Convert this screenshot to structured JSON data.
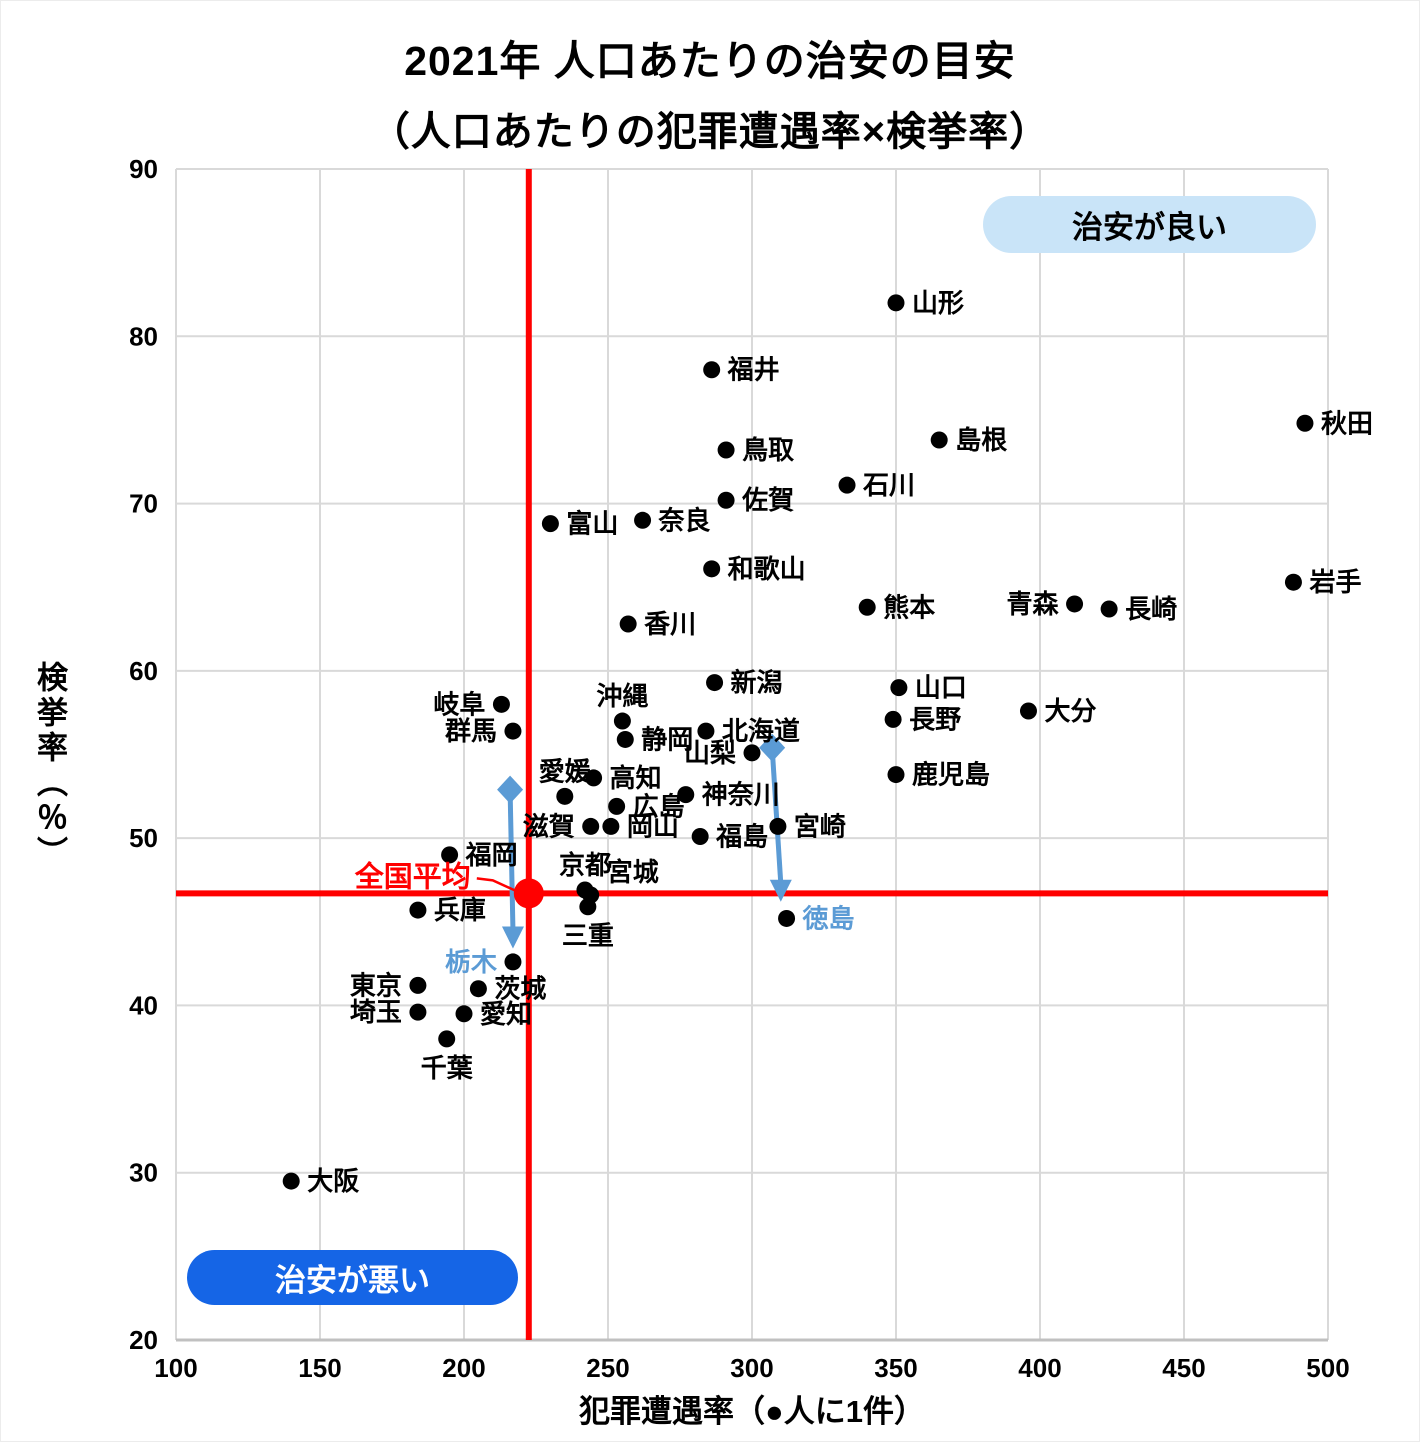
{
  "chart_data": {
    "type": "scatter",
    "title": "2021年 人口あたりの治安の目安",
    "subtitle": "（人口あたりの犯罪遭遇率×検挙率）",
    "xlabel": "犯罪遭遇率（●人に1件）",
    "ylabel": "検挙率（％）",
    "xlim": [
      100,
      500
    ],
    "ylim": [
      20,
      90
    ],
    "x_ticks": [
      100,
      150,
      200,
      250,
      300,
      350,
      400,
      450,
      500
    ],
    "y_ticks": [
      20,
      30,
      40,
      50,
      60,
      70,
      80,
      90
    ],
    "grid": true,
    "point_color": "#000000",
    "accent_red": "#ff0000",
    "accent_blue": "#5b9bd5",
    "grid_color": "#d9d9d9",
    "points": [
      {
        "name": "山形",
        "x": 350,
        "y": 82.0,
        "label_pos": "right"
      },
      {
        "name": "福井",
        "x": 286,
        "y": 78.0,
        "label_pos": "right"
      },
      {
        "name": "秋田",
        "x": 492,
        "y": 74.8,
        "label_pos": "right"
      },
      {
        "name": "島根",
        "x": 365,
        "y": 73.8,
        "label_pos": "right"
      },
      {
        "name": "鳥取",
        "x": 291,
        "y": 73.2,
        "label_pos": "right"
      },
      {
        "name": "石川",
        "x": 333,
        "y": 71.1,
        "label_pos": "right"
      },
      {
        "name": "佐賀",
        "x": 291,
        "y": 70.2,
        "label_pos": "right"
      },
      {
        "name": "奈良",
        "x": 262,
        "y": 69.0,
        "label_pos": "right"
      },
      {
        "name": "富山",
        "x": 230,
        "y": 68.8,
        "label_pos": "right"
      },
      {
        "name": "和歌山",
        "x": 286,
        "y": 66.1,
        "label_pos": "right"
      },
      {
        "name": "岩手",
        "x": 488,
        "y": 65.3,
        "label_pos": "right"
      },
      {
        "name": "青森",
        "x": 412,
        "y": 64.0,
        "label_pos": "left"
      },
      {
        "name": "長崎",
        "x": 424,
        "y": 63.7,
        "label_pos": "right"
      },
      {
        "name": "熊本",
        "x": 340,
        "y": 63.8,
        "label_pos": "right"
      },
      {
        "name": "香川",
        "x": 257,
        "y": 62.8,
        "label_pos": "right"
      },
      {
        "name": "新潟",
        "x": 287,
        "y": 59.3,
        "label_pos": "right"
      },
      {
        "name": "山口",
        "x": 351,
        "y": 59.0,
        "label_pos": "right"
      },
      {
        "name": "岐阜",
        "x": 213,
        "y": 58.0,
        "label_pos": "left"
      },
      {
        "name": "大分",
        "x": 396,
        "y": 57.6,
        "label_pos": "right"
      },
      {
        "name": "長野",
        "x": 349,
        "y": 57.1,
        "label_pos": "right"
      },
      {
        "name": "沖縄",
        "x": 255,
        "y": 57.0,
        "label_pos": "above"
      },
      {
        "name": "群馬",
        "x": 217,
        "y": 56.4,
        "label_pos": "left"
      },
      {
        "name": "北海道",
        "x": 284,
        "y": 56.4,
        "label_pos": "right"
      },
      {
        "name": "静岡",
        "x": 256,
        "y": 55.9,
        "label_pos": "right"
      },
      {
        "name": "山梨",
        "x": 300,
        "y": 55.1,
        "label_pos": "left"
      },
      {
        "name": "鹿児島",
        "x": 350,
        "y": 53.8,
        "label_pos": "right"
      },
      {
        "name": "高知",
        "x": 245,
        "y": 53.6,
        "label_pos": "right"
      },
      {
        "name": "神奈川",
        "x": 277,
        "y": 52.6,
        "label_pos": "right"
      },
      {
        "name": "愛媛",
        "x": 235,
        "y": 52.5,
        "label_pos": "above"
      },
      {
        "name": "広島",
        "x": 253,
        "y": 51.9,
        "label_pos": "right"
      },
      {
        "name": "宮崎",
        "x": 309,
        "y": 50.7,
        "label_pos": "right"
      },
      {
        "name": "滋賀",
        "x": 244,
        "y": 50.7,
        "label_pos": "left"
      },
      {
        "name": "岡山",
        "x": 251,
        "y": 50.7,
        "label_pos": "right"
      },
      {
        "name": "福島",
        "x": 282,
        "y": 50.1,
        "label_pos": "right"
      },
      {
        "name": "福岡",
        "x": 195,
        "y": 49.0,
        "label_pos": "right"
      },
      {
        "name": "京都",
        "x": 242,
        "y": 46.9,
        "label_pos": "above"
      },
      {
        "name": "宮城",
        "x": 244,
        "y": 46.6,
        "label_pos": "above-right"
      },
      {
        "name": "三重",
        "x": 243,
        "y": 45.9,
        "label_pos": "below"
      },
      {
        "name": "兵庫",
        "x": 184,
        "y": 45.7,
        "label_pos": "right"
      },
      {
        "name": "徳島",
        "x": 312,
        "y": 45.2,
        "label_pos": "right",
        "highlight": true
      },
      {
        "name": "栃木",
        "x": 217,
        "y": 42.6,
        "label_pos": "left",
        "highlight": true
      },
      {
        "name": "東京",
        "x": 184,
        "y": 41.2,
        "label_pos": "left"
      },
      {
        "name": "茨城",
        "x": 205,
        "y": 41.0,
        "label_pos": "right"
      },
      {
        "name": "埼玉",
        "x": 184,
        "y": 39.6,
        "label_pos": "left"
      },
      {
        "name": "愛知",
        "x": 200,
        "y": 39.5,
        "label_pos": "right"
      },
      {
        "name": "千葉",
        "x": 194,
        "y": 38.0,
        "label_pos": "below"
      },
      {
        "name": "大阪",
        "x": 140,
        "y": 29.5,
        "label_pos": "right"
      }
    ],
    "national_average": {
      "label": "全国平均",
      "x": 222.5,
      "y": 46.7
    },
    "movement_arrows": [
      {
        "to_point": "栃木",
        "from_x": 216,
        "from_y": 52.9,
        "to_x": 217,
        "to_y": 43.4
      },
      {
        "to_point": "徳島",
        "from_x": 307,
        "from_y": 55.4,
        "to_x": 310,
        "to_y": 46.2
      }
    ],
    "badges": {
      "good": "治安が良い",
      "bad": "治安が悪い"
    }
  }
}
